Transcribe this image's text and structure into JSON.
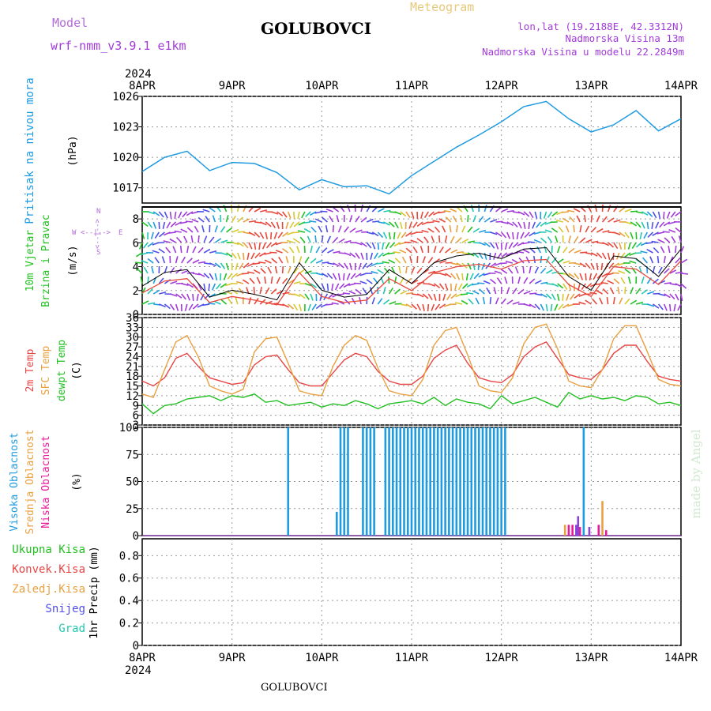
{
  "header": {
    "model_label": "Model",
    "model_name": "wrf-nmm_v3.9.1 e1km",
    "station": "GOLUBOVCI",
    "product": "Meteogram",
    "lonlat": "lon,lat (19.2188E, 42.3312N)",
    "elevation": "Nadmorska Visina 13m",
    "model_elevation": "Nadmorska Visina u modelu 22.2849m",
    "footer_station": "GOLUBOVCI",
    "credit": "made by Angel",
    "colors": {
      "model": "#b36bd9",
      "product": "#e8c87a",
      "station": "#000000",
      "info": "#a23bd9"
    }
  },
  "time_axis": {
    "year": "2024",
    "ticks": [
      "8APR",
      "9APR",
      "10APR",
      "11APR",
      "12APR",
      "13APR",
      "14APR"
    ]
  },
  "panels": {
    "pressure": {
      "title": "Pritisak na nivou mora",
      "unit": "(hPa)",
      "ytick_labels": [
        "1017",
        "1020",
        "1023",
        "1026"
      ],
      "color": "#1f9be0"
    },
    "wind": {
      "title_line1": "10m Vjetar",
      "title_line2": "Brzina i Pravac",
      "unit": "(m/s)",
      "ytick_labels": [
        "0",
        "2",
        "4",
        "6",
        "8"
      ],
      "compass_n": "N",
      "compass_arrow": "<--|-->",
      "compass_w": "W",
      "compass_e": "E",
      "compass_s": "S"
    },
    "temperature": {
      "label_2m": "2m Temp",
      "label_sfc": "SFC Temp",
      "label_dewpt": "dewpt Temp",
      "unit": "(C)",
      "ytick_labels": [
        "3",
        "6",
        "9",
        "12",
        "15",
        "18",
        "21",
        "24",
        "27",
        "30",
        "33",
        "36"
      ]
    },
    "clouds": {
      "label_high": "Visoka Oblacnost",
      "label_mid": "Srednja Oblacnost",
      "label_low": "Niska Oblacnost",
      "unit": "(%)",
      "ytick_labels": [
        "0",
        "25",
        "50",
        "75",
        "100"
      ]
    },
    "precip": {
      "label_total": "Ukupna Kisa",
      "label_conv": "Konvek.Kisa",
      "label_frz": "Zaledj.Kisa",
      "label_snow": "Snijeg",
      "label_hail": "Grad",
      "unit": "1hr Precip (mm)",
      "ytick_labels": [
        "0",
        "0.2",
        "0.4",
        "0.6",
        "0.8"
      ]
    }
  },
  "chart_data": [
    {
      "type": "line",
      "name": "pressure",
      "x_unit": "hours from 8APR 00UTC",
      "ylim": [
        1015.5,
        1026
      ],
      "x": [
        0,
        6,
        12,
        18,
        24,
        30,
        36,
        42,
        48,
        54,
        60,
        66,
        72,
        78,
        84,
        90,
        96,
        102,
        108,
        114,
        120,
        126,
        132,
        138,
        144
      ],
      "values": [
        1018.6,
        1020.0,
        1020.6,
        1018.7,
        1019.5,
        1019.4,
        1018.5,
        1016.8,
        1017.8,
        1017.1,
        1017.2,
        1016.4,
        1018.2,
        1019.6,
        1021.0,
        1022.2,
        1023.5,
        1025.0,
        1025.5,
        1023.8,
        1022.5,
        1023.2,
        1024.6,
        1022.6,
        1023.8
      ],
      "color": "#1f9be0"
    },
    {
      "type": "line",
      "name": "wind",
      "ylim": [
        0,
        9
      ],
      "x": [
        0,
        6,
        12,
        18,
        24,
        30,
        36,
        42,
        48,
        54,
        60,
        66,
        72,
        78,
        84,
        90,
        96,
        102,
        108,
        114,
        120,
        126,
        132,
        138,
        144
      ],
      "speed": [
        1.8,
        2.8,
        3.0,
        1.0,
        1.5,
        1.2,
        0.8,
        3.5,
        1.5,
        1.0,
        1.2,
        3.0,
        2.0,
        3.5,
        4.0,
        4.2,
        3.8,
        4.5,
        4.6,
        2.5,
        1.5,
        4.0,
        3.8,
        2.5,
        4.5
      ],
      "speed_color": "#e8483c",
      "gust_color": "#000000"
    },
    {
      "type": "line",
      "name": "temperature",
      "ylim": [
        3,
        36
      ],
      "x": [
        0,
        3,
        6,
        9,
        12,
        15,
        18,
        21,
        24,
        27,
        30,
        33,
        36,
        39,
        42,
        45,
        48,
        51,
        54,
        57,
        60,
        63,
        66,
        69,
        72,
        75,
        78,
        81,
        84,
        87,
        90,
        93,
        96,
        99,
        102,
        105,
        108,
        111,
        114,
        117,
        120,
        123,
        126,
        129,
        132,
        135,
        138,
        141,
        144
      ],
      "series": [
        {
          "name": "2m Temp",
          "color": "#e84545",
          "values": [
            16.5,
            15.0,
            17.5,
            23.5,
            25.0,
            21.0,
            17.5,
            16.5,
            15.5,
            16.0,
            21.5,
            24.0,
            24.5,
            20.0,
            16.0,
            15.0,
            15.0,
            19.0,
            23.0,
            25.0,
            24.0,
            19.5,
            16.5,
            15.5,
            15.5,
            18.0,
            23.5,
            26.0,
            27.5,
            22.0,
            17.5,
            16.5,
            16.0,
            18.5,
            24.0,
            27.0,
            28.5,
            23.5,
            18.5,
            17.5,
            17.0,
            20.0,
            25.0,
            27.5,
            27.5,
            22.5,
            18.0,
            17.0,
            16.5
          ]
        },
        {
          "name": "SFC Temp",
          "color": "#e8a040",
          "values": [
            12.5,
            11.5,
            20.0,
            28.5,
            30.5,
            24.0,
            15.0,
            13.5,
            12.5,
            14.0,
            25.5,
            29.5,
            30.0,
            22.0,
            13.5,
            12.5,
            12.0,
            21.0,
            27.5,
            30.5,
            29.0,
            20.5,
            13.5,
            12.5,
            12.0,
            17.0,
            27.5,
            32.0,
            33.0,
            24.5,
            15.0,
            13.5,
            13.0,
            17.5,
            28.0,
            33.0,
            34.0,
            26.5,
            16.5,
            15.0,
            14.5,
            20.0,
            29.5,
            33.5,
            33.5,
            25.5,
            17.0,
            15.5,
            15.0
          ]
        },
        {
          "name": "dewpt Temp",
          "color": "#22c022",
          "values": [
            9.5,
            6.5,
            9.0,
            9.5,
            11.0,
            11.5,
            12.0,
            10.5,
            12.0,
            11.5,
            12.5,
            10.0,
            10.5,
            9.0,
            9.5,
            10.0,
            8.5,
            9.5,
            9.0,
            10.5,
            9.5,
            8.0,
            9.5,
            10.0,
            10.5,
            9.5,
            11.5,
            9.0,
            11.0,
            10.0,
            9.5,
            8.0,
            12.0,
            9.5,
            10.5,
            11.5,
            10.0,
            8.5,
            13.0,
            11.0,
            12.0,
            11.0,
            11.5,
            10.5,
            12.0,
            11.5,
            9.5,
            10.0,
            9.0
          ]
        }
      ]
    },
    {
      "type": "bar",
      "name": "clouds",
      "ylim": [
        0,
        100
      ],
      "series": [
        {
          "name": "Visoka Oblacnost",
          "color": "#1f9be0",
          "x": [
            20,
            26,
            27,
            28,
            31,
            31.5,
            32,
            33,
            34,
            35,
            36,
            37,
            38,
            39,
            40,
            41,
            42,
            43,
            44,
            45,
            46,
            47,
            48,
            49,
            50,
            51,
            52,
            53,
            54,
            55,
            56,
            57,
            58,
            59,
            60,
            61,
            62,
            63,
            64,
            65,
            66,
            67,
            68,
            69,
            70,
            71,
            72,
            73,
            74,
            75,
            76,
            77,
            78,
            79,
            80,
            81,
            82,
            83,
            84,
            85,
            86,
            87,
            88,
            89,
            90,
            91,
            92,
            93,
            94,
            95,
            96,
            97,
            98,
            99,
            100,
            101,
            102,
            103,
            104,
            105,
            106,
            107,
            108,
            109,
            110,
            111,
            112,
            113,
            114,
            115,
            116,
            117,
            118,
            119,
            120,
            121,
            122,
            123,
            124,
            125,
            126,
            127,
            128,
            129,
            130,
            131,
            132,
            133,
            134,
            135,
            136,
            137,
            138,
            139,
            140,
            141,
            142,
            143,
            144
          ],
          "values": [
            0,
            0,
            0,
            0,
            0,
            0,
            0,
            0,
            0,
            0,
            0,
            0,
            0,
            0,
            0,
            0,
            0,
            0,
            0,
            0,
            0,
            0,
            0,
            0,
            0,
            0,
            0,
            0,
            0,
            0,
            0,
            0,
            0,
            0,
            0,
            0,
            0,
            0,
            0,
            0,
            0,
            0,
            0,
            0,
            0,
            0,
            0,
            0,
            0,
            0,
            0,
            0,
            0,
            0,
            0,
            0,
            0,
            0,
            0,
            0,
            0,
            0,
            0,
            0,
            0,
            0,
            0,
            0,
            0,
            0,
            0,
            0,
            0,
            0,
            0,
            0,
            0,
            0,
            0,
            0,
            0,
            0,
            0,
            0,
            0,
            0,
            0,
            0,
            0,
            0,
            0,
            0,
            0,
            0,
            0,
            0,
            0,
            0,
            0,
            0,
            0,
            0,
            0,
            0,
            0,
            0,
            0,
            0,
            0,
            0,
            0,
            0,
            0,
            0,
            0,
            0,
            0,
            0,
            0
          ]
        },
        {
          "name": "Visoka Oblacnost bars",
          "color": "#1f9be0",
          "x": [
            39,
            52,
            53,
            54,
            55,
            59,
            60,
            61,
            62,
            65,
            66,
            67,
            68,
            69,
            70,
            71,
            72,
            73,
            74,
            75,
            76,
            77,
            78,
            79,
            80,
            81,
            82,
            83,
            84,
            85,
            86,
            87,
            88,
            89,
            90,
            91,
            92,
            93,
            94,
            95,
            96,
            97,
            118
          ],
          "values": [
            100,
            22,
            100,
            100,
            100,
            100,
            100,
            100,
            100,
            100,
            100,
            100,
            100,
            100,
            100,
            100,
            100,
            100,
            100,
            100,
            100,
            100,
            100,
            100,
            100,
            100,
            100,
            100,
            100,
            100,
            100,
            100,
            100,
            100,
            100,
            100,
            100,
            100,
            100,
            100,
            100,
            100,
            100
          ]
        },
        {
          "name": "Srednja Oblacnost",
          "color": "#e8a040",
          "x": [
            113,
            123
          ],
          "values": [
            10,
            32
          ]
        },
        {
          "name": "Niska Oblacnost",
          "color": "#e8189a",
          "x": [
            114,
            115,
            117,
            122,
            124
          ],
          "values": [
            10,
            10,
            8,
            10,
            5
          ]
        },
        {
          "name": "extra",
          "color": "#8a44d8",
          "x": [
            116,
            116.5,
            119.5
          ],
          "values": [
            10,
            18,
            8
          ]
        }
      ]
    },
    {
      "type": "bar",
      "name": "precip",
      "ylim": [
        0,
        0.95
      ],
      "series": [
        {
          "name": "Ukupna Kisa",
          "color": "#22c022",
          "x": [],
          "values": []
        },
        {
          "name": "Konvek.Kisa",
          "color": "#e84545",
          "x": [],
          "values": []
        },
        {
          "name": "Zaledj.Kisa",
          "color": "#e8a040",
          "x": [],
          "values": []
        },
        {
          "name": "Snijeg",
          "color": "#4f4fe8",
          "x": [],
          "values": []
        },
        {
          "name": "Grad",
          "color": "#22c8b0",
          "x": [],
          "values": []
        }
      ]
    }
  ]
}
